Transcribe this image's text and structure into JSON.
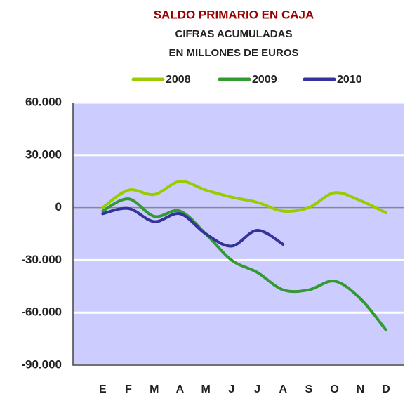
{
  "chart_data": {
    "type": "line",
    "title": "SALDO PRIMARIO EN CAJA",
    "subtitle": [
      "CIFRAS ACUMULADAS",
      "EN MILLONES DE EUROS"
    ],
    "categories": [
      "E",
      "F",
      "M",
      "A",
      "M",
      "J",
      "J",
      "A",
      "S",
      "O",
      "N",
      "D"
    ],
    "series": [
      {
        "name": "2008",
        "color": "#99cc00",
        "values": [
          0,
          10000,
          7500,
          15000,
          10000,
          6000,
          3000,
          -2000,
          0,
          8500,
          4000,
          -3000
        ]
      },
      {
        "name": "2009",
        "color": "#339933",
        "values": [
          -2000,
          5000,
          -5000,
          -2000,
          -15000,
          -30000,
          -37000,
          -47000,
          -47000,
          -42000,
          -52000,
          -70000
        ]
      },
      {
        "name": "2010",
        "color": "#333399",
        "values": [
          -3500,
          -500,
          -8000,
          -3500,
          -15000,
          -22000,
          -13000,
          -21000,
          null,
          null,
          null,
          null
        ]
      }
    ],
    "ylim": [
      -90000,
      60000
    ],
    "yticks": [
      {
        "value": -90000,
        "label": "-90.000"
      },
      {
        "value": -60000,
        "label": "-60.000"
      },
      {
        "value": -30000,
        "label": "-30.000"
      },
      0,
      {
        "value": 30000,
        "label": "30.000"
      },
      {
        "value": 60000,
        "label": "60.000"
      }
    ],
    "grid": true,
    "legend": "top"
  }
}
